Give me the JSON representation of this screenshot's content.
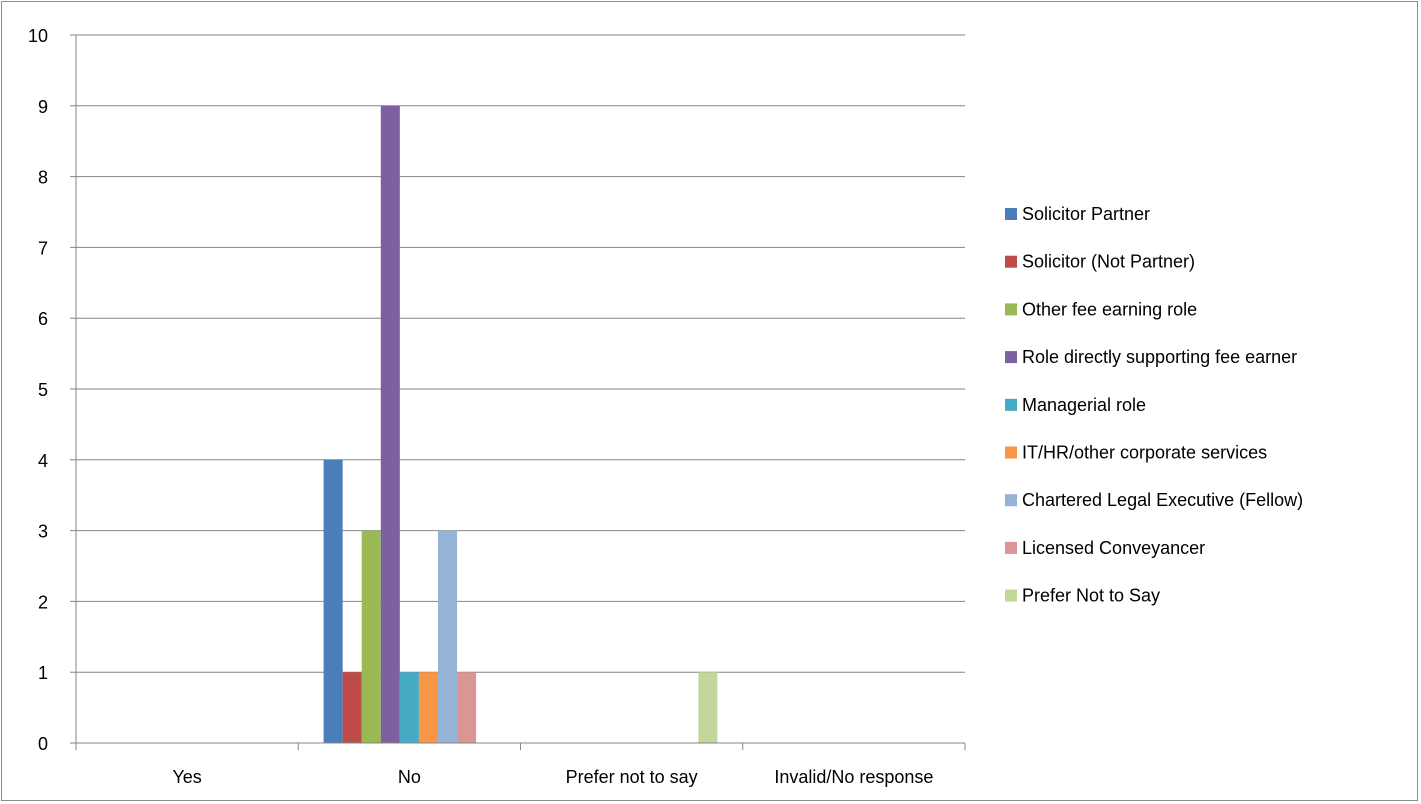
{
  "chart_data": {
    "type": "bar",
    "categories": [
      "Yes",
      "No",
      "Prefer not to say",
      "Invalid/No response"
    ],
    "ylim": [
      0,
      10
    ],
    "yticks": [
      0,
      1,
      2,
      3,
      4,
      5,
      6,
      7,
      8,
      9,
      10
    ],
    "grid": true,
    "legend_position": "right",
    "series": [
      {
        "name": "Solicitor Partner",
        "color": "#4a7ebb",
        "values": [
          0,
          4,
          0,
          0
        ]
      },
      {
        "name": "Solicitor (Not Partner)",
        "color": "#be4b48",
        "values": [
          0,
          1,
          0,
          0
        ]
      },
      {
        "name": "Other fee earning role",
        "color": "#98b954",
        "values": [
          0,
          3,
          0,
          0
        ]
      },
      {
        "name": "Role directly supporting fee earner",
        "color": "#7d60a0",
        "values": [
          0,
          9,
          0,
          0
        ]
      },
      {
        "name": "Managerial role",
        "color": "#46aac5",
        "values": [
          0,
          1,
          0,
          0
        ]
      },
      {
        "name": "IT/HR/other corporate services",
        "color": "#f79646",
        "values": [
          0,
          1,
          0,
          0
        ]
      },
      {
        "name": "Chartered Legal Executive (Fellow)",
        "color": "#95b3d7",
        "values": [
          0,
          3,
          0,
          0
        ]
      },
      {
        "name": "Licensed Conveyancer",
        "color": "#d99694",
        "values": [
          0,
          1,
          0,
          0
        ]
      },
      {
        "name": "Prefer Not to Say",
        "color": "#c3d69b",
        "values": [
          0,
          0,
          1,
          0
        ]
      }
    ]
  }
}
